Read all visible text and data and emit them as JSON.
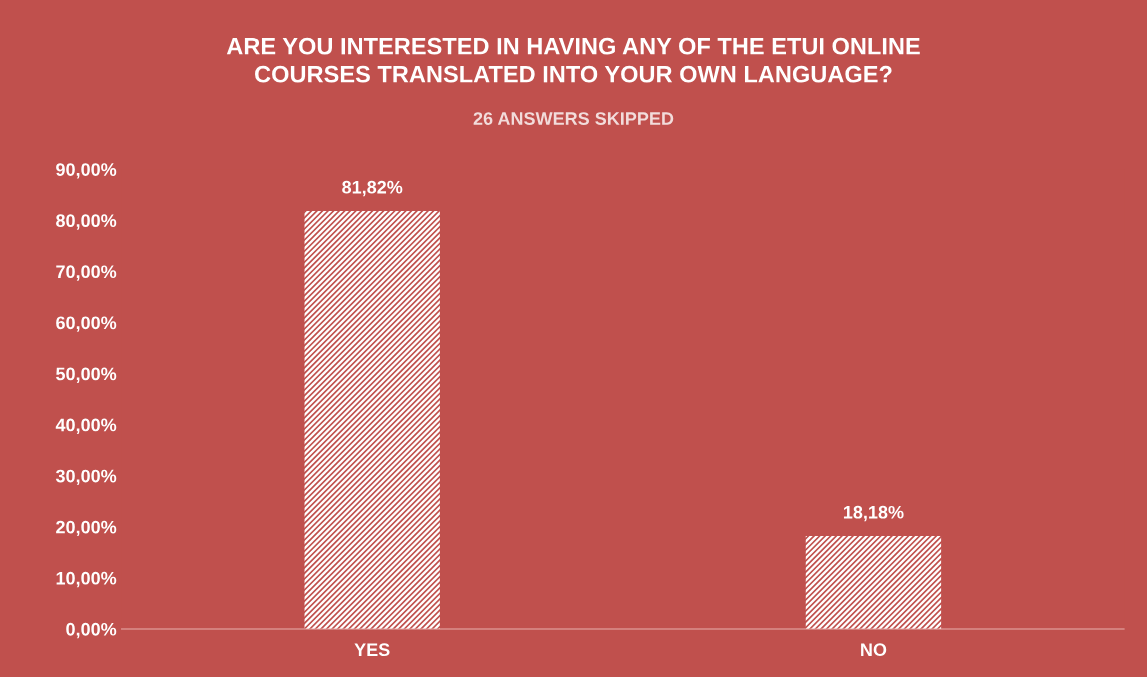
{
  "chart_data": {
    "type": "bar",
    "title": "ARE YOU INTERESTED IN HAVING ANY OF THE ETUI ONLINE\nCOURSES TRANSLATED INTO YOUR OWN LANGUAGE?",
    "subtitle": "26 ANSWERS SKIPPED",
    "categories": [
      "YES",
      "NO"
    ],
    "values": [
      81.82,
      18.18
    ],
    "value_labels": [
      "81,82%",
      "18,18%"
    ],
    "color": "#ffffff",
    "ylim": [
      0,
      90
    ],
    "yticks": [
      {
        "value": 0,
        "label": "0,00%"
      },
      {
        "value": 10,
        "label": "10,00%"
      },
      {
        "value": 20,
        "label": "20,00%"
      },
      {
        "value": 30,
        "label": "30,00%"
      },
      {
        "value": 40,
        "label": "40,00%"
      },
      {
        "value": 50,
        "label": "50,00%"
      },
      {
        "value": 60,
        "label": "60,00%"
      },
      {
        "value": 70,
        "label": "70,00%"
      },
      {
        "value": 80,
        "label": "80,00%"
      },
      {
        "value": 90,
        "label": "90,00%"
      }
    ],
    "grid": false,
    "legend": false
  }
}
